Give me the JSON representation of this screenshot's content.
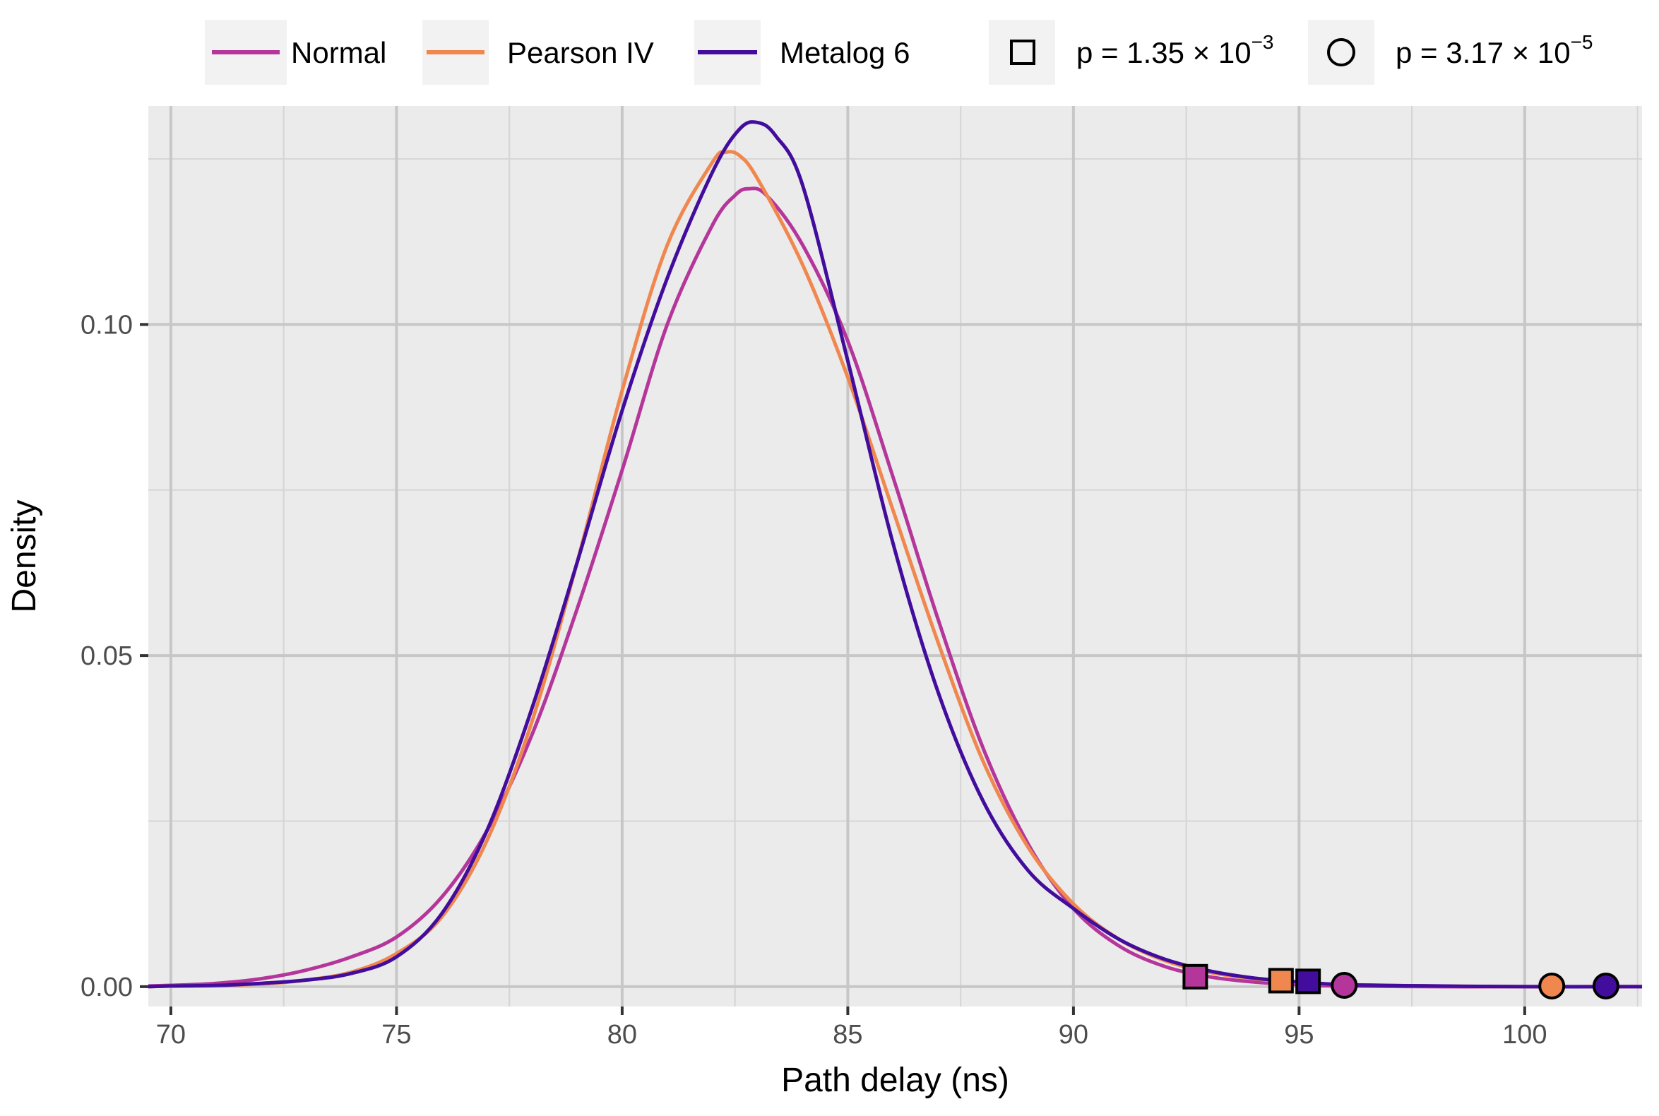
{
  "chart_data": {
    "type": "line",
    "title": "",
    "xlabel": "Path delay (ns)",
    "ylabel": "Density",
    "xlim": [
      69.5,
      102.6
    ],
    "ylim": [
      -0.003,
      0.133
    ],
    "x_ticks": [
      70,
      75,
      80,
      85,
      90,
      95,
      100
    ],
    "x_tick_labels": [
      "70",
      "75",
      "80",
      "85",
      "90",
      "95",
      "100"
    ],
    "y_ticks": [
      0.0,
      0.05,
      0.1
    ],
    "y_tick_labels": [
      "0.00",
      "0.05",
      "0.10"
    ],
    "grid": true,
    "legend_position": "top",
    "series": [
      {
        "name": "Normal",
        "color": "#b5369a",
        "x": [
          69.5,
          70,
          71,
          72,
          73,
          74,
          75,
          76,
          77,
          78,
          79,
          80,
          81,
          82,
          82.5,
          82.8,
          83.2,
          84,
          85,
          86,
          87,
          88,
          89,
          90,
          91,
          92,
          93,
          94,
          95,
          96,
          98,
          100,
          102.6
        ],
        "y": [
          0.0001,
          0.0002,
          0.0005,
          0.0012,
          0.0025,
          0.0045,
          0.0075,
          0.0135,
          0.0235,
          0.038,
          0.057,
          0.078,
          0.1,
          0.115,
          0.1195,
          0.1205,
          0.1195,
          0.112,
          0.0975,
          0.077,
          0.0555,
          0.036,
          0.0215,
          0.0118,
          0.0062,
          0.0031,
          0.0015,
          0.0007,
          0.0003,
          0.0001,
          0.0,
          0.0,
          0.0
        ]
      },
      {
        "name": "Pearson IV",
        "color": "#f0874f",
        "x": [
          69.5,
          70,
          71,
          72,
          73,
          74,
          75,
          76,
          77,
          78,
          79,
          80,
          81,
          82,
          82.3,
          82.6,
          83,
          84,
          85,
          86,
          87,
          88,
          89,
          90,
          91,
          92,
          93,
          94,
          95,
          96,
          98,
          100,
          102.6
        ],
        "y": [
          0.0,
          0.0001,
          0.0002,
          0.0004,
          0.001,
          0.0022,
          0.005,
          0.0105,
          0.022,
          0.04,
          0.064,
          0.09,
          0.112,
          0.1245,
          0.126,
          0.1255,
          0.122,
          0.109,
          0.092,
          0.072,
          0.052,
          0.034,
          0.021,
          0.0125,
          0.0072,
          0.004,
          0.0022,
          0.0012,
          0.0006,
          0.0003,
          0.0001,
          0.0,
          0.0
        ]
      },
      {
        "name": "Metalog 6",
        "color": "#420d9c",
        "x": [
          69.5,
          70,
          71,
          72,
          73,
          74,
          75,
          76,
          77,
          78,
          79,
          80,
          81,
          82,
          82.6,
          83,
          83.4,
          84,
          85,
          86,
          87,
          88,
          89,
          90,
          91,
          92,
          93,
          94,
          95,
          96,
          98,
          100,
          102.6
        ],
        "y": [
          0.0,
          0.0001,
          0.0002,
          0.0005,
          0.001,
          0.002,
          0.0045,
          0.011,
          0.0235,
          0.042,
          0.064,
          0.087,
          0.107,
          0.123,
          0.1295,
          0.1305,
          0.1285,
          0.121,
          0.0945,
          0.067,
          0.0445,
          0.028,
          0.0175,
          0.0118,
          0.0072,
          0.0042,
          0.0024,
          0.0013,
          0.0007,
          0.0003,
          0.0001,
          0.0,
          0.0
        ]
      }
    ],
    "markers": [
      {
        "series": "Normal",
        "shape": "square",
        "x": 92.7,
        "y": 0.0015,
        "color": "#b5369a"
      },
      {
        "series": "Pearson IV",
        "shape": "square",
        "x": 94.6,
        "y": 0.0009,
        "color": "#f0874f"
      },
      {
        "series": "Metalog 6",
        "shape": "square",
        "x": 95.2,
        "y": 0.0008,
        "color": "#420d9c"
      },
      {
        "series": "Normal",
        "shape": "circle",
        "x": 96.0,
        "y": 0.0002,
        "color": "#b5369a"
      },
      {
        "series": "Pearson IV",
        "shape": "circle",
        "x": 100.6,
        "y": 0.0001,
        "color": "#f0874f"
      },
      {
        "series": "Metalog 6",
        "shape": "circle",
        "x": 101.8,
        "y": 0.0001,
        "color": "#420d9c"
      }
    ],
    "legend": {
      "lines": [
        {
          "label": "Normal",
          "color": "#b5369a"
        },
        {
          "label": "Pearson IV",
          "color": "#f0874f"
        },
        {
          "label": "Metalog 6",
          "color": "#420d9c"
        }
      ],
      "shapes": [
        {
          "shape": "square",
          "label_prefix": "p = 1.35 × 10",
          "label_exponent": "−3"
        },
        {
          "shape": "circle",
          "label_prefix": "p = 3.17 × 10",
          "label_exponent": "−5"
        }
      ]
    },
    "colors": {
      "panel_background": "#ebebeb",
      "grid_major": "#c7c7c7",
      "grid_minor": "#d6d6d6"
    }
  }
}
